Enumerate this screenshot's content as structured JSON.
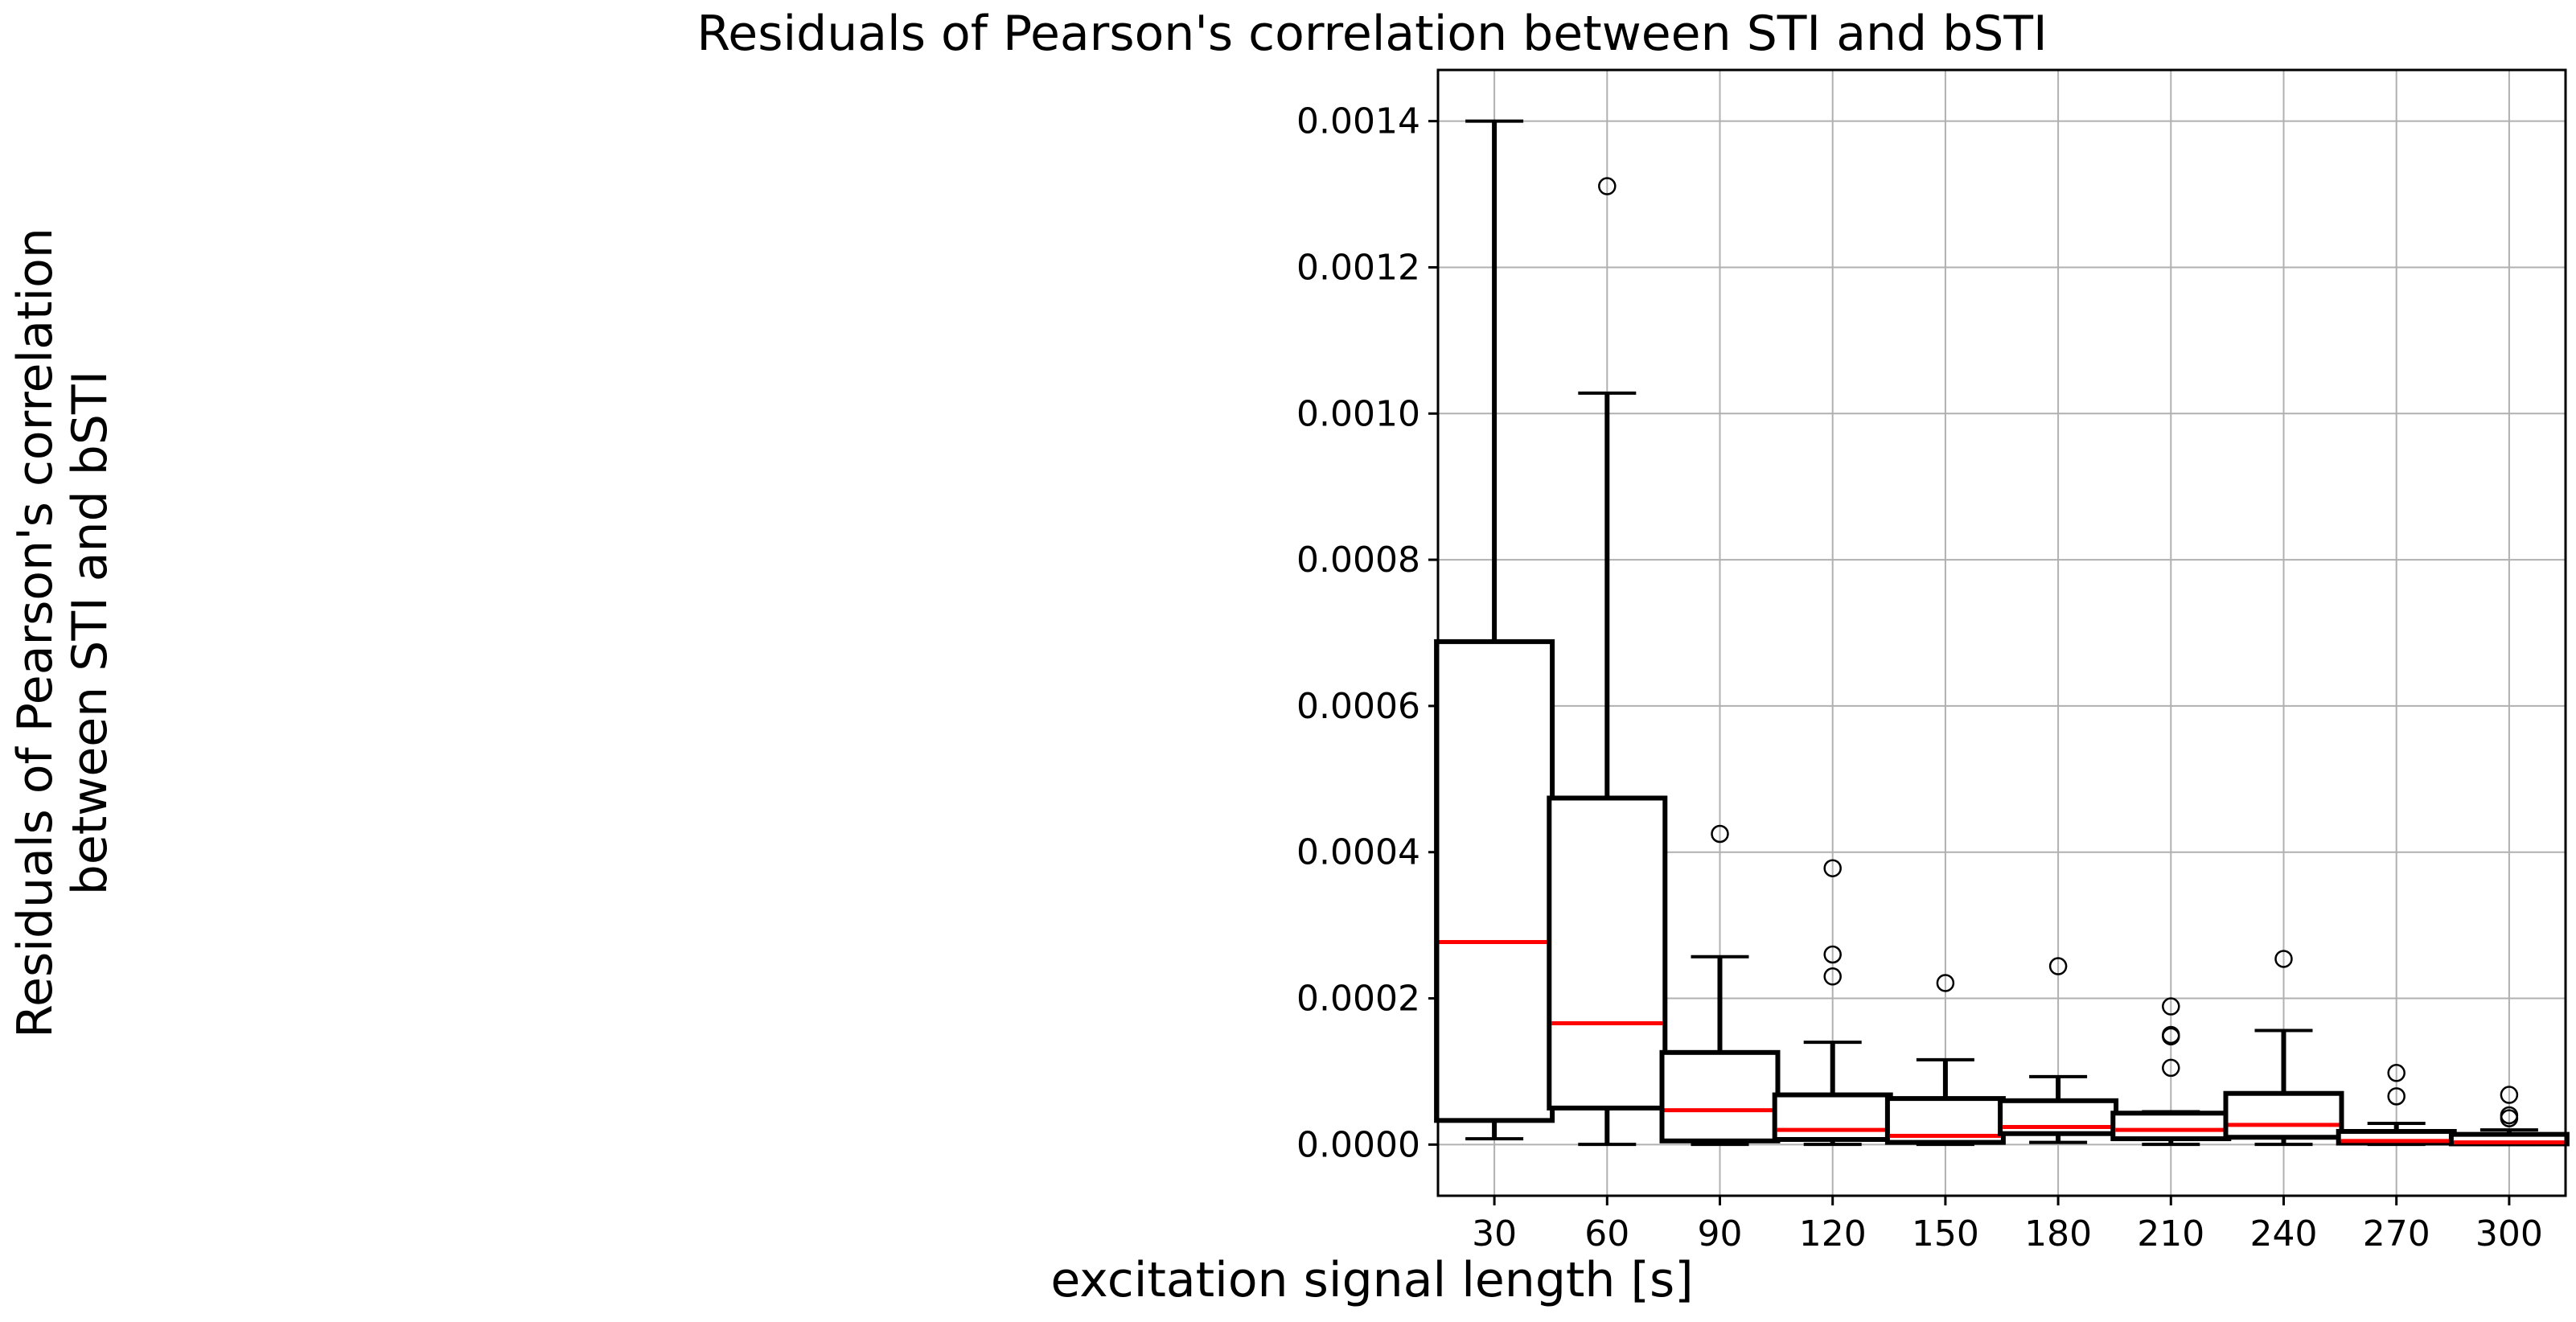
{
  "chart_data": {
    "type": "boxplot",
    "title": "Residuals of Pearson's correlation between STI and bSTI",
    "xlabel": "excitation signal length [s]",
    "ylabel_lines": [
      "Residuals of Pearson's correlation",
      "between STI and bSTI"
    ],
    "categories": [
      "30",
      "60",
      "90",
      "120",
      "150",
      "180",
      "210",
      "240",
      "270",
      "300"
    ],
    "ylim": [
      -7e-05,
      0.00147
    ],
    "yticks": [
      0.0,
      0.0002,
      0.0004,
      0.0006,
      0.0008,
      0.001,
      0.0012,
      0.0014
    ],
    "ytick_labels": [
      "0.0000",
      "0.0002",
      "0.0004",
      "0.0006",
      "0.0008",
      "0.0010",
      "0.0012",
      "0.0014"
    ],
    "grid": true,
    "colors": {
      "box": "#000000",
      "median": "#ff0000",
      "grid": "#b0b0b0"
    },
    "boxes": [
      {
        "whisker_low": 8e-06,
        "q1": 3.3e-05,
        "median": 0.000277,
        "q3": 0.000688,
        "whisker_high": 0.0014,
        "outliers": []
      },
      {
        "whisker_low": 3e-07,
        "q1": 5e-05,
        "median": 0.000166,
        "q3": 0.000474,
        "whisker_high": 0.001028,
        "outliers": [
          0.001311
        ]
      },
      {
        "whisker_low": 2e-07,
        "q1": 5e-06,
        "median": 4.7e-05,
        "q3": 0.000126,
        "whisker_high": 0.000257,
        "outliers": [
          0.000425
        ]
      },
      {
        "whisker_low": 2e-07,
        "q1": 7e-06,
        "median": 2e-05,
        "q3": 6.8e-05,
        "whisker_high": 0.00014,
        "outliers": [
          0.000378,
          0.00026,
          0.00023
        ]
      },
      {
        "whisker_low": 2e-07,
        "q1": 3e-06,
        "median": 1.2e-05,
        "q3": 6.3e-05,
        "whisker_high": 0.000116,
        "outliers": [
          0.000221
        ]
      },
      {
        "whisker_low": 3e-06,
        "q1": 1.5e-05,
        "median": 2.4e-05,
        "q3": 6e-05,
        "whisker_high": 9.3e-05,
        "outliers": [
          0.000244
        ]
      },
      {
        "whisker_low": 3e-07,
        "q1": 8e-06,
        "median": 2e-05,
        "q3": 4.3e-05,
        "whisker_high": 4.5e-05,
        "outliers": [
          0.000189,
          0.00015,
          0.000148,
          0.000105
        ]
      },
      {
        "whisker_low": 2e-07,
        "q1": 1e-05,
        "median": 2.7e-05,
        "q3": 7e-05,
        "whisker_high": 0.000156,
        "outliers": [
          0.000254
        ]
      },
      {
        "whisker_low": 2e-07,
        "q1": 2e-06,
        "median": 5e-06,
        "q3": 1.8e-05,
        "whisker_high": 2.9e-05,
        "outliers": [
          9.8e-05,
          6.6e-05
        ]
      },
      {
        "whisker_low": 2e-07,
        "q1": 1e-06,
        "median": 3e-06,
        "q3": 1.4e-05,
        "whisker_high": 2e-05,
        "outliers": [
          6.8e-05,
          4e-05,
          3.6e-05
        ]
      }
    ]
  }
}
